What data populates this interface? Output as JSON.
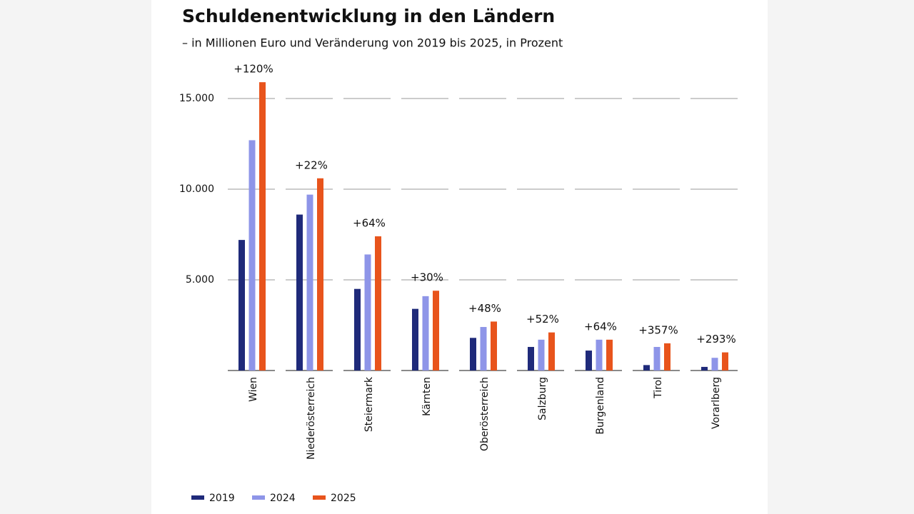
{
  "chart_data": {
    "type": "bar",
    "title": "Schuldenentwicklung in den Ländern",
    "subtitle": "– in Millionen Euro und Veränderung von 2019 bis 2025, in Prozent",
    "categories": [
      "Wien",
      "Niederösterreich",
      "Steiermark",
      "Kärnten",
      "Oberösterreich",
      "Salzburg",
      "Burgenland",
      "Tirol",
      "Vorarlberg"
    ],
    "series": [
      {
        "name": "2019",
        "color": "#1f2a7a",
        "values": [
          7200,
          8600,
          4500,
          3400,
          1800,
          1300,
          1100,
          300,
          200
        ]
      },
      {
        "name": "2024",
        "color": "#8e95e8",
        "values": [
          12700,
          9700,
          6400,
          4100,
          2400,
          1700,
          1700,
          1300,
          700
        ]
      },
      {
        "name": "2025",
        "color": "#e8541c",
        "values": [
          15900,
          10600,
          7400,
          4400,
          2700,
          2100,
          1700,
          1500,
          1000
        ]
      }
    ],
    "annotations": [
      "+120%",
      "+22%",
      "+64%",
      "+30%",
      "+48%",
      "+52%",
      "+64%",
      "+357%",
      "+293%"
    ],
    "ylim": [
      0,
      16000
    ],
    "yticks": [
      {
        "value": 5000,
        "label": "5.000"
      },
      {
        "value": 10000,
        "label": "10.000"
      },
      {
        "value": 15000,
        "label": "15.000"
      }
    ],
    "grid": true,
    "legend": "bottom-left"
  }
}
